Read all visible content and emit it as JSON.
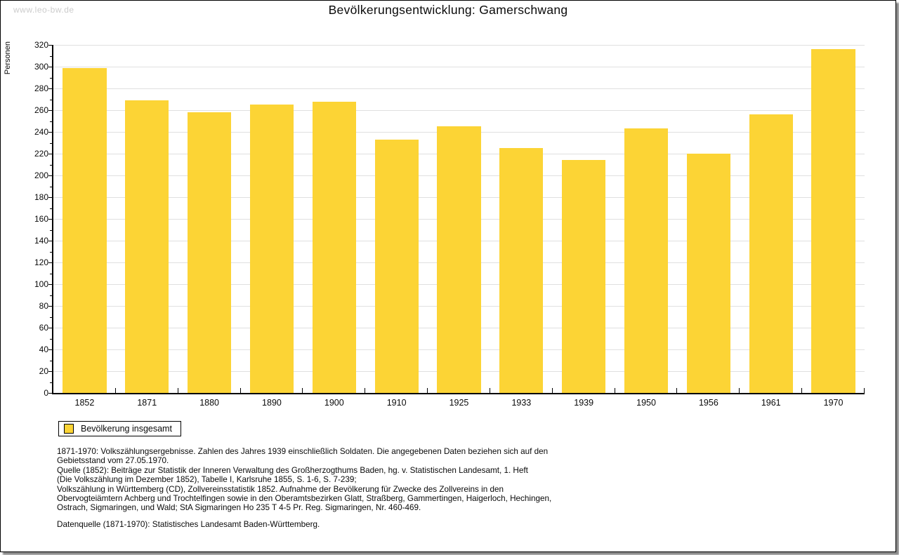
{
  "watermark": "www.leo-bw.de",
  "title": "Bevölkerungsentwicklung: Gamerschwang",
  "chart_data": {
    "type": "bar",
    "title": "Bevölkerungsentwicklung: Gamerschwang",
    "categories": [
      "1852",
      "1871",
      "1880",
      "1890",
      "1900",
      "1910",
      "1925",
      "1933",
      "1939",
      "1950",
      "1956",
      "1961",
      "1970"
    ],
    "series": [
      {
        "name": "Bevölkerung insgesamt",
        "values": [
          299,
          269,
          258,
          265,
          268,
          233,
          245,
          225,
          214,
          243,
          220,
          256,
          316
        ]
      }
    ],
    "xlabel": "",
    "ylabel": "Personen",
    "ylim": [
      0,
      320
    ],
    "ytick_step": 20,
    "yminor_step": 10,
    "grid": true,
    "legend_position": "bottom-left",
    "bar_color": "#FCD435"
  },
  "legend": {
    "label": "Bevölkerung insgesamt",
    "swatch_color": "#FCD435"
  },
  "footnote_lines": [
    "1871-1970: Volkszählungsergebnisse. Zahlen des Jahres 1939 einschließlich Soldaten. Die angegebenen Daten beziehen sich auf den",
    "Gebietsstand vom 27.05.1970.",
    "Quelle (1852): Beiträge zur Statistik der Inneren Verwaltung des Großherzogthums Baden, hg. v. Statistischen Landesamt, 1. Heft",
    "(Die Volkszählung im Dezember 1852), Tabelle I, Karlsruhe 1855, S. 1-6, S. 7-239;",
    "Volkszählung in Württemberg (CD), Zollvereinsstatistik 1852. Aufnahme der Bevölkerung für Zwecke des Zollvereins in den",
    "Obervogteiämtern Achberg und Trochtelfingen sowie in den Oberamtsbezirken Glatt, Straßberg, Gammertingen, Haigerloch, Hechingen,",
    "Ostrach, Sigmaringen, und Wald; StA Sigmaringen Ho 235 T 4-5 Pr. Reg. Sigmaringen, Nr. 460-469."
  ],
  "datasource": "Datenquelle (1871-1970): Statistisches Landesamt Baden-Württemberg."
}
